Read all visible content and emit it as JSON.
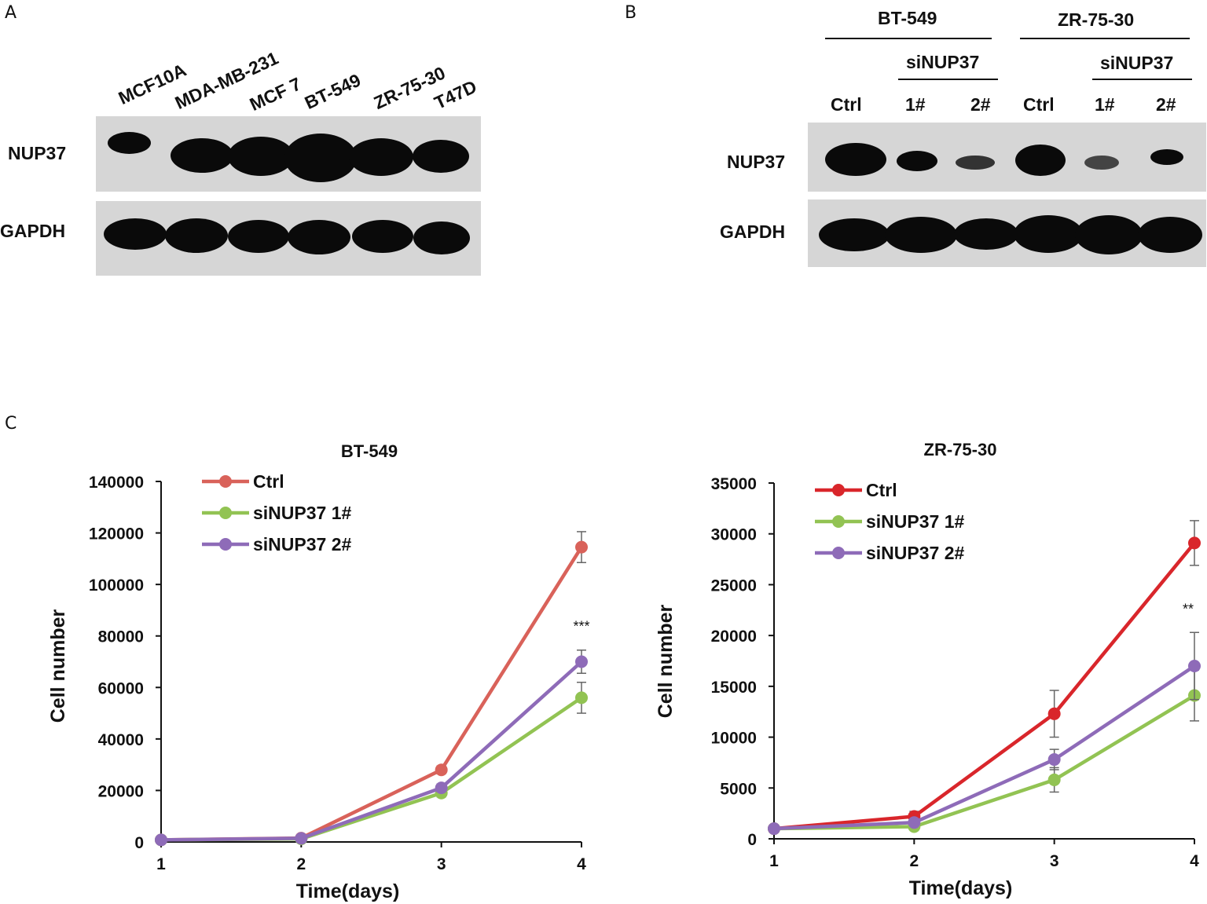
{
  "panels": {
    "a": "A",
    "b": "B",
    "c": "C"
  },
  "panel_a": {
    "lanes": [
      "MCF10A",
      "MDA-MB-231",
      "MCF 7",
      "BT-549",
      "ZR-75-30",
      "T47D"
    ],
    "rows": [
      "NUP37",
      "GAPDH"
    ]
  },
  "panel_b": {
    "groups": [
      "BT-549",
      "ZR-75-30"
    ],
    "subgroup": "siNUP37",
    "lanes": [
      "Ctrl",
      "1#",
      "2#",
      "Ctrl",
      "1#",
      "2#"
    ],
    "rows": [
      "NUP37",
      "GAPDH"
    ]
  },
  "chart_data": [
    {
      "type": "line",
      "title": "BT-549",
      "xlabel": "Time(days)",
      "ylabel": "Cell number",
      "x": [
        1,
        2,
        3,
        4
      ],
      "ylim": [
        0,
        140000
      ],
      "yticks": [
        "0",
        "20000",
        "40000",
        "60000",
        "80000",
        "100000",
        "120000",
        "140000"
      ],
      "xticks": [
        "1",
        "2",
        "3",
        "4"
      ],
      "legend_position": "top-left",
      "annotation": "***",
      "series": [
        {
          "name": "Ctrl",
          "color": "#d9625a",
          "values": [
            800,
            1500,
            28000,
            114500
          ],
          "errors": [
            300,
            400,
            1500,
            6000
          ]
        },
        {
          "name": "siNUP37 1#",
          "color": "#92c353",
          "values": [
            800,
            1200,
            19000,
            56000
          ],
          "errors": [
            300,
            300,
            1500,
            6000
          ]
        },
        {
          "name": "siNUP37 2#",
          "color": "#8e6bb8",
          "values": [
            800,
            1400,
            21000,
            70000
          ],
          "errors": [
            300,
            300,
            1500,
            4500
          ]
        }
      ]
    },
    {
      "type": "line",
      "title": "ZR-75-30",
      "xlabel": "Time(days)",
      "ylabel": "Cell number",
      "x": [
        1,
        2,
        3,
        4
      ],
      "ylim": [
        0,
        35000
      ],
      "yticks": [
        "0",
        "5000",
        "10000",
        "15000",
        "20000",
        "25000",
        "30000",
        "35000"
      ],
      "xticks": [
        "1",
        "2",
        "3",
        "4"
      ],
      "legend_position": "top-left",
      "annotation": "**",
      "series": [
        {
          "name": "Ctrl",
          "color": "#d9262b",
          "values": [
            1000,
            2200,
            12300,
            29100
          ],
          "errors": [
            150,
            500,
            2300,
            2200
          ]
        },
        {
          "name": "siNUP37 1#",
          "color": "#92c353",
          "values": [
            1000,
            1200,
            5800,
            14100
          ],
          "errors": [
            150,
            200,
            1200,
            2500
          ]
        },
        {
          "name": "siNUP37 2#",
          "color": "#8e6bb8",
          "values": [
            1000,
            1600,
            7800,
            17000
          ],
          "errors": [
            150,
            300,
            1000,
            3300
          ]
        }
      ]
    }
  ]
}
